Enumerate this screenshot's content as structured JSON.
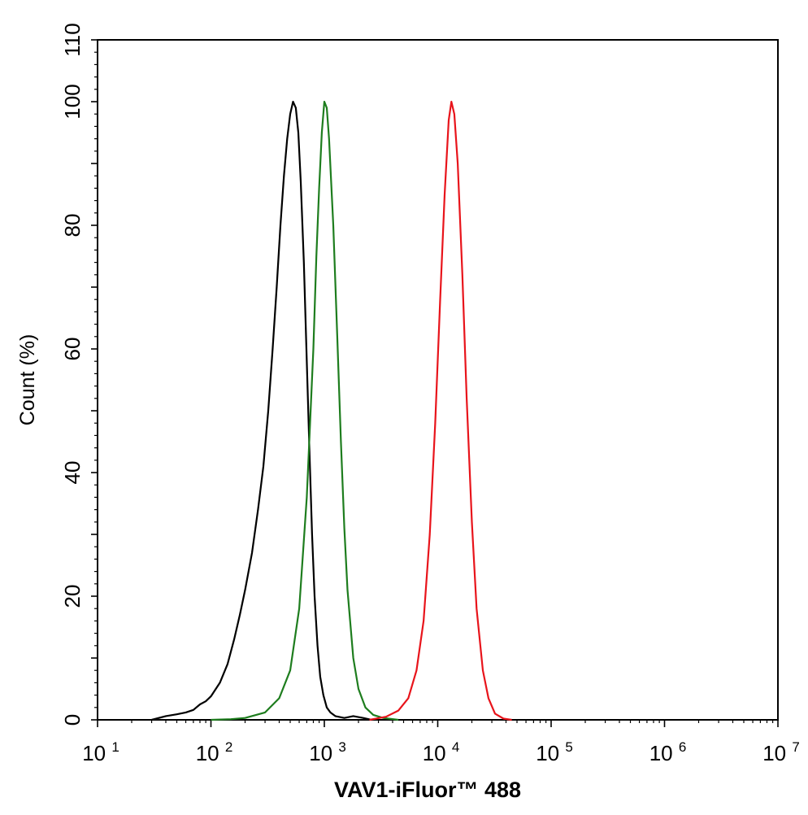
{
  "chart_data": {
    "type": "line",
    "title": "",
    "xlabel": "VAV1-iFluor™ 488",
    "ylabel": "Count  (%)",
    "x_scale": "log",
    "xlim": [
      10,
      10000000
    ],
    "ylim": [
      0,
      110
    ],
    "x_ticks": [
      {
        "base": "10",
        "exp": "1"
      },
      {
        "base": "10",
        "exp": "2"
      },
      {
        "base": "10",
        "exp": "3"
      },
      {
        "base": "10",
        "exp": "4"
      },
      {
        "base": "10",
        "exp": "5"
      },
      {
        "base": "10",
        "exp": "6"
      },
      {
        "base": "10",
        "exp": "7"
      }
    ],
    "y_ticks": [
      0,
      20,
      40,
      60,
      80,
      100,
      110
    ],
    "grid": false,
    "legend": "none",
    "series": [
      {
        "color": "#000000",
        "points": [
          [
            30,
            0
          ],
          [
            40,
            0.6
          ],
          [
            50,
            0.9
          ],
          [
            60,
            1.2
          ],
          [
            70,
            1.6
          ],
          [
            80,
            2.5
          ],
          [
            90,
            3
          ],
          [
            100,
            3.8
          ],
          [
            120,
            6
          ],
          [
            140,
            9
          ],
          [
            160,
            13
          ],
          [
            180,
            17
          ],
          [
            200,
            21
          ],
          [
            230,
            27
          ],
          [
            260,
            34
          ],
          [
            290,
            41
          ],
          [
            320,
            50
          ],
          [
            350,
            60
          ],
          [
            380,
            70
          ],
          [
            410,
            80
          ],
          [
            440,
            88
          ],
          [
            470,
            94
          ],
          [
            500,
            98
          ],
          [
            530,
            100
          ],
          [
            560,
            99
          ],
          [
            590,
            95
          ],
          [
            620,
            87
          ],
          [
            660,
            74
          ],
          [
            700,
            58
          ],
          [
            740,
            43
          ],
          [
            780,
            30
          ],
          [
            820,
            20
          ],
          [
            870,
            12
          ],
          [
            920,
            7
          ],
          [
            980,
            4
          ],
          [
            1050,
            2
          ],
          [
            1130,
            1.2
          ],
          [
            1250,
            0.6
          ],
          [
            1500,
            0.3
          ],
          [
            1800,
            0.6
          ],
          [
            2200,
            0.3
          ],
          [
            2600,
            0
          ]
        ]
      },
      {
        "color": "#1e7d1e",
        "points": [
          [
            100,
            0
          ],
          [
            150,
            0.1
          ],
          [
            200,
            0.3
          ],
          [
            300,
            1.2
          ],
          [
            400,
            3.5
          ],
          [
            500,
            8
          ],
          [
            600,
            18
          ],
          [
            700,
            36
          ],
          [
            800,
            60
          ],
          [
            850,
            75
          ],
          [
            900,
            86
          ],
          [
            950,
            95
          ],
          [
            1000,
            100
          ],
          [
            1050,
            99
          ],
          [
            1100,
            94
          ],
          [
            1200,
            80
          ],
          [
            1300,
            62
          ],
          [
            1400,
            45
          ],
          [
            1500,
            31
          ],
          [
            1600,
            21
          ],
          [
            1800,
            10
          ],
          [
            2000,
            5
          ],
          [
            2300,
            2
          ],
          [
            2700,
            0.8
          ],
          [
            3300,
            0.3
          ],
          [
            4500,
            0
          ]
        ]
      },
      {
        "color": "#e8141b",
        "points": [
          [
            2500,
            0
          ],
          [
            3500,
            0.5
          ],
          [
            4500,
            1.5
          ],
          [
            5500,
            3.5
          ],
          [
            6500,
            8
          ],
          [
            7500,
            16
          ],
          [
            8500,
            30
          ],
          [
            9500,
            48
          ],
          [
            10500,
            68
          ],
          [
            11500,
            85
          ],
          [
            12500,
            97
          ],
          [
            13200,
            100
          ],
          [
            14000,
            98
          ],
          [
            15000,
            90
          ],
          [
            16500,
            72
          ],
          [
            18000,
            52
          ],
          [
            20000,
            32
          ],
          [
            22000,
            18
          ],
          [
            25000,
            8
          ],
          [
            28000,
            3.5
          ],
          [
            32000,
            1
          ],
          [
            38000,
            0.2
          ],
          [
            45000,
            0
          ]
        ]
      }
    ]
  }
}
